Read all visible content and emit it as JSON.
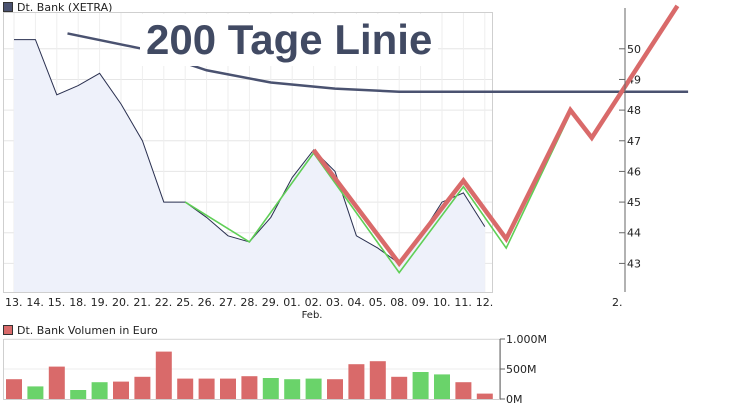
{
  "chart_data": [
    {
      "type": "line",
      "title": "Dt. Bank (XETRA)",
      "legend_color": "#4a5270",
      "x_labels": [
        "13.",
        "14.",
        "15.",
        "18.",
        "19.",
        "20.",
        "21.",
        "22.",
        "25.",
        "26.",
        "27.",
        "28.",
        "29.",
        "01.",
        "02.",
        "03.",
        "04.",
        "05.",
        "08.",
        "09.",
        "10.",
        "11.",
        "12."
      ],
      "x_month_label": "Feb.",
      "x_extra_label": "2.",
      "yticks": [
        43,
        44,
        45,
        46,
        47,
        48,
        49,
        50
      ],
      "ylim": [
        42.1,
        51.2
      ],
      "grid": true,
      "series": [
        {
          "kind": "price-area",
          "color": "#2a3050",
          "fill": "#eef1fa",
          "points": [
            [
              0,
              50.3
            ],
            [
              1,
              50.3
            ],
            [
              2,
              48.5
            ],
            [
              3,
              48.8
            ],
            [
              4,
              49.2
            ],
            [
              5,
              48.2
            ],
            [
              6,
              47.0
            ],
            [
              7,
              45.0
            ],
            [
              8,
              45.0
            ],
            [
              9,
              44.5
            ],
            [
              10,
              43.9
            ],
            [
              11,
              43.7
            ],
            [
              12,
              44.5
            ],
            [
              13,
              45.8
            ],
            [
              14,
              46.7
            ],
            [
              15,
              46.0
            ],
            [
              16,
              43.9
            ],
            [
              17,
              43.5
            ],
            [
              18,
              43.0
            ],
            [
              19,
              43.9
            ],
            [
              20,
              45.0
            ],
            [
              21,
              45.3
            ],
            [
              22,
              44.2
            ]
          ]
        },
        {
          "kind": "moving-average",
          "color": "#4a5270",
          "points": [
            [
              2.5,
              50.5
            ],
            [
              6,
              50.0
            ],
            [
              9,
              49.3
            ],
            [
              12,
              48.9
            ],
            [
              15,
              48.7
            ],
            [
              18,
              48.6
            ],
            [
              22,
              48.6
            ],
            [
              26,
              48.6
            ],
            [
              31.5,
              48.6
            ]
          ]
        },
        {
          "kind": "trend",
          "color": "#5fcf56",
          "points": [
            [
              8,
              45.0
            ],
            [
              11,
              43.7
            ],
            [
              14,
              46.6
            ],
            [
              18,
              42.7
            ],
            [
              21,
              45.5
            ],
            [
              23,
              43.5
            ],
            [
              26,
              47.9
            ]
          ]
        },
        {
          "kind": "trend",
          "color": "#d96a6a",
          "points": [
            [
              14,
              46.7
            ],
            [
              18,
              43.0
            ],
            [
              21,
              45.7
            ],
            [
              23,
              43.8
            ],
            [
              26,
              48.0
            ],
            [
              27,
              47.1
            ],
            [
              31,
              51.4
            ]
          ]
        }
      ],
      "annotation": "200 Tage Linie"
    },
    {
      "type": "bar",
      "title": "Dt. Bank Volumen in Euro",
      "legend_color": "#d96a6a",
      "yticks": [
        "1.000M",
        "500M",
        "0M"
      ],
      "ylim": [
        0,
        1000
      ],
      "up_color": "#6ad36a",
      "down_color": "#d96a6a",
      "values": [
        330,
        210,
        540,
        150,
        280,
        290,
        370,
        790,
        340,
        340,
        340,
        380,
        350,
        330,
        340,
        330,
        580,
        630,
        370,
        450,
        410,
        280,
        90
      ],
      "colors": [
        "down",
        "up",
        "down",
        "up",
        "up",
        "down",
        "down",
        "down",
        "down",
        "down",
        "down",
        "down",
        "up",
        "up",
        "up",
        "down",
        "down",
        "down",
        "down",
        "up",
        "up",
        "down",
        "down"
      ]
    }
  ]
}
